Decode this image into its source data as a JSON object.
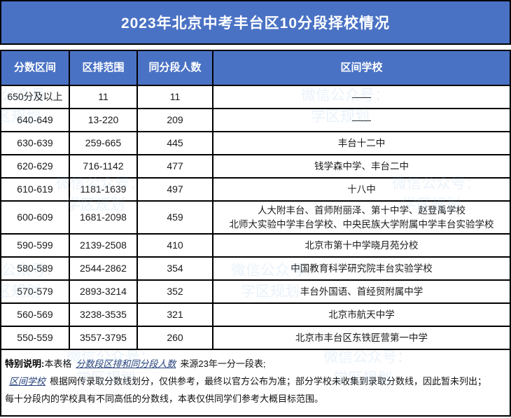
{
  "title": "2023年北京中考丰台区10分段择校情况",
  "table": {
    "headers": [
      "分数区间",
      "区排范围",
      "同分段人数",
      "区间学校"
    ],
    "rows": [
      {
        "range": "650分及以上",
        "rank": "11",
        "count": "11",
        "schools": "——"
      },
      {
        "range": "640-649",
        "rank": "13-220",
        "count": "209",
        "schools": "——"
      },
      {
        "range": "630-639",
        "rank": "259-665",
        "count": "445",
        "schools": "丰台十二中"
      },
      {
        "range": "620-629",
        "rank": "716-1142",
        "count": "477",
        "schools": "钱学森中学、丰台二中"
      },
      {
        "range": "610-619",
        "rank": "1181-1639",
        "count": "497",
        "schools": "十八中"
      },
      {
        "range": "600-609",
        "rank": "1681-2098",
        "count": "459",
        "schools": "人大附丰台、首师附丽泽、第十中学、赵登禹学校\n北师大实验中学丰台学校、中央民族大学附属中学丰台实验学校"
      },
      {
        "range": "590-599",
        "rank": "2139-2508",
        "count": "410",
        "schools": "北京市第十中学晓月苑分校"
      },
      {
        "range": "580-589",
        "rank": "2544-2862",
        "count": "354",
        "schools": "中国教育科学研究院丰台实验学校"
      },
      {
        "range": "570-579",
        "rank": "2893-3214",
        "count": "352",
        "schools": "丰台外国语、首经贸附属中学"
      },
      {
        "range": "560-569",
        "rank": "3238-3535",
        "count": "321",
        "schools": "北京市航天中学"
      },
      {
        "range": "550-559",
        "rank": "3557-3795",
        "count": "260",
        "schools": "北京市丰台区东铁匠营第一中学"
      }
    ]
  },
  "notes": {
    "label": "特别说明:",
    "n1_pre": "本表格",
    "n1_term": "分数段区排和同分段人数",
    "n1_post": "来源23年一分一段表;",
    "n2_term": "区间学校",
    "n2_text": "根据网传录取分数线划分，仅供参考，最终以官方公布为准；部分学校未收集到录取分数线，因此暂未列出；",
    "n3_text": "每十分段内的学校具有不同高低的分数线，本表仅供同学们参考大概目标范围。"
  },
  "watermark": {
    "line1": "微信公众号：",
    "line2": "学区规划"
  },
  "colors": {
    "band_blue": "#4a72c4",
    "border_black": "#000000",
    "term_blue": "#24407a",
    "watermark_blue": "#8fbce8"
  }
}
